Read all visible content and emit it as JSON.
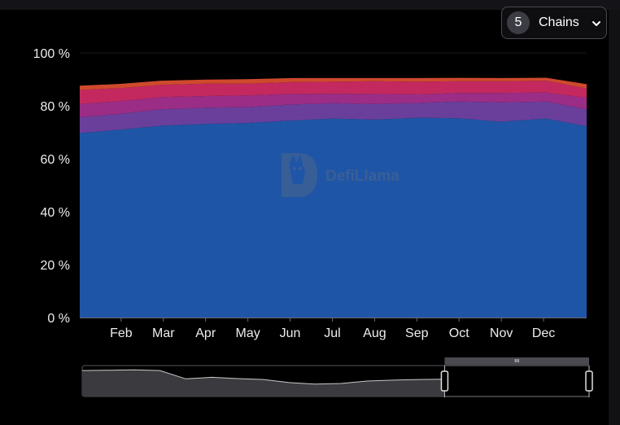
{
  "header": {
    "chains_count": "5",
    "chains_label": "Chains",
    "chevron_icon": "chevron-down-icon"
  },
  "watermark": {
    "text": "DefiLlama",
    "icon": "llama-logo-icon"
  },
  "chart_data": {
    "type": "area",
    "stacked": true,
    "percent": true,
    "y_ticks": [
      "0 %",
      "20 %",
      "40 %",
      "60 %",
      "80 %",
      "100 %"
    ],
    "x_ticks": [
      "Feb",
      "Mar",
      "Apr",
      "May",
      "Jun",
      "Jul",
      "Aug",
      "Sep",
      "Oct",
      "Nov",
      "Dec"
    ],
    "ylim": [
      0,
      100
    ],
    "grid": true,
    "x_positions": [
      0,
      0.08,
      0.16,
      0.25,
      0.33,
      0.42,
      0.5,
      0.58,
      0.67,
      0.75,
      0.83,
      0.92,
      1.0
    ],
    "series": [
      {
        "color": "#1f55a6",
        "values": [
          69.7,
          71.0,
          72.5,
          73.2,
          73.5,
          74.5,
          75.2,
          74.8,
          75.5,
          75.3,
          74.0,
          75.2,
          72.3
        ]
      },
      {
        "color": "#6a3f9c",
        "values": [
          6.0,
          6.0,
          6.2,
          6.1,
          6.0,
          6.0,
          5.8,
          5.9,
          5.6,
          6.3,
          7.3,
          6.4,
          6.4
        ]
      },
      {
        "color": "#9b2d86",
        "values": [
          5.0,
          4.8,
          4.6,
          4.4,
          4.4,
          4.0,
          3.6,
          3.8,
          3.2,
          3.3,
          3.6,
          3.4,
          4.3
        ]
      },
      {
        "color": "#c3295f",
        "values": [
          5.3,
          4.9,
          4.6,
          4.7,
          4.5,
          4.5,
          4.5,
          4.8,
          4.8,
          4.4,
          4.4,
          4.5,
          3.6
        ]
      },
      {
        "color": "#cf4a2c",
        "values": [
          1.6,
          1.6,
          1.6,
          1.5,
          1.7,
          1.5,
          1.4,
          1.2,
          1.4,
          1.3,
          1.2,
          1.1,
          1.6
        ]
      }
    ],
    "overview": {
      "window_start": 0.715,
      "window_end": 1.0,
      "line_values": [
        0.84,
        0.85,
        0.86,
        0.84,
        0.57,
        0.62,
        0.58,
        0.55,
        0.45,
        0.4,
        0.42,
        0.5,
        0.53,
        0.55,
        0.56
      ]
    }
  }
}
